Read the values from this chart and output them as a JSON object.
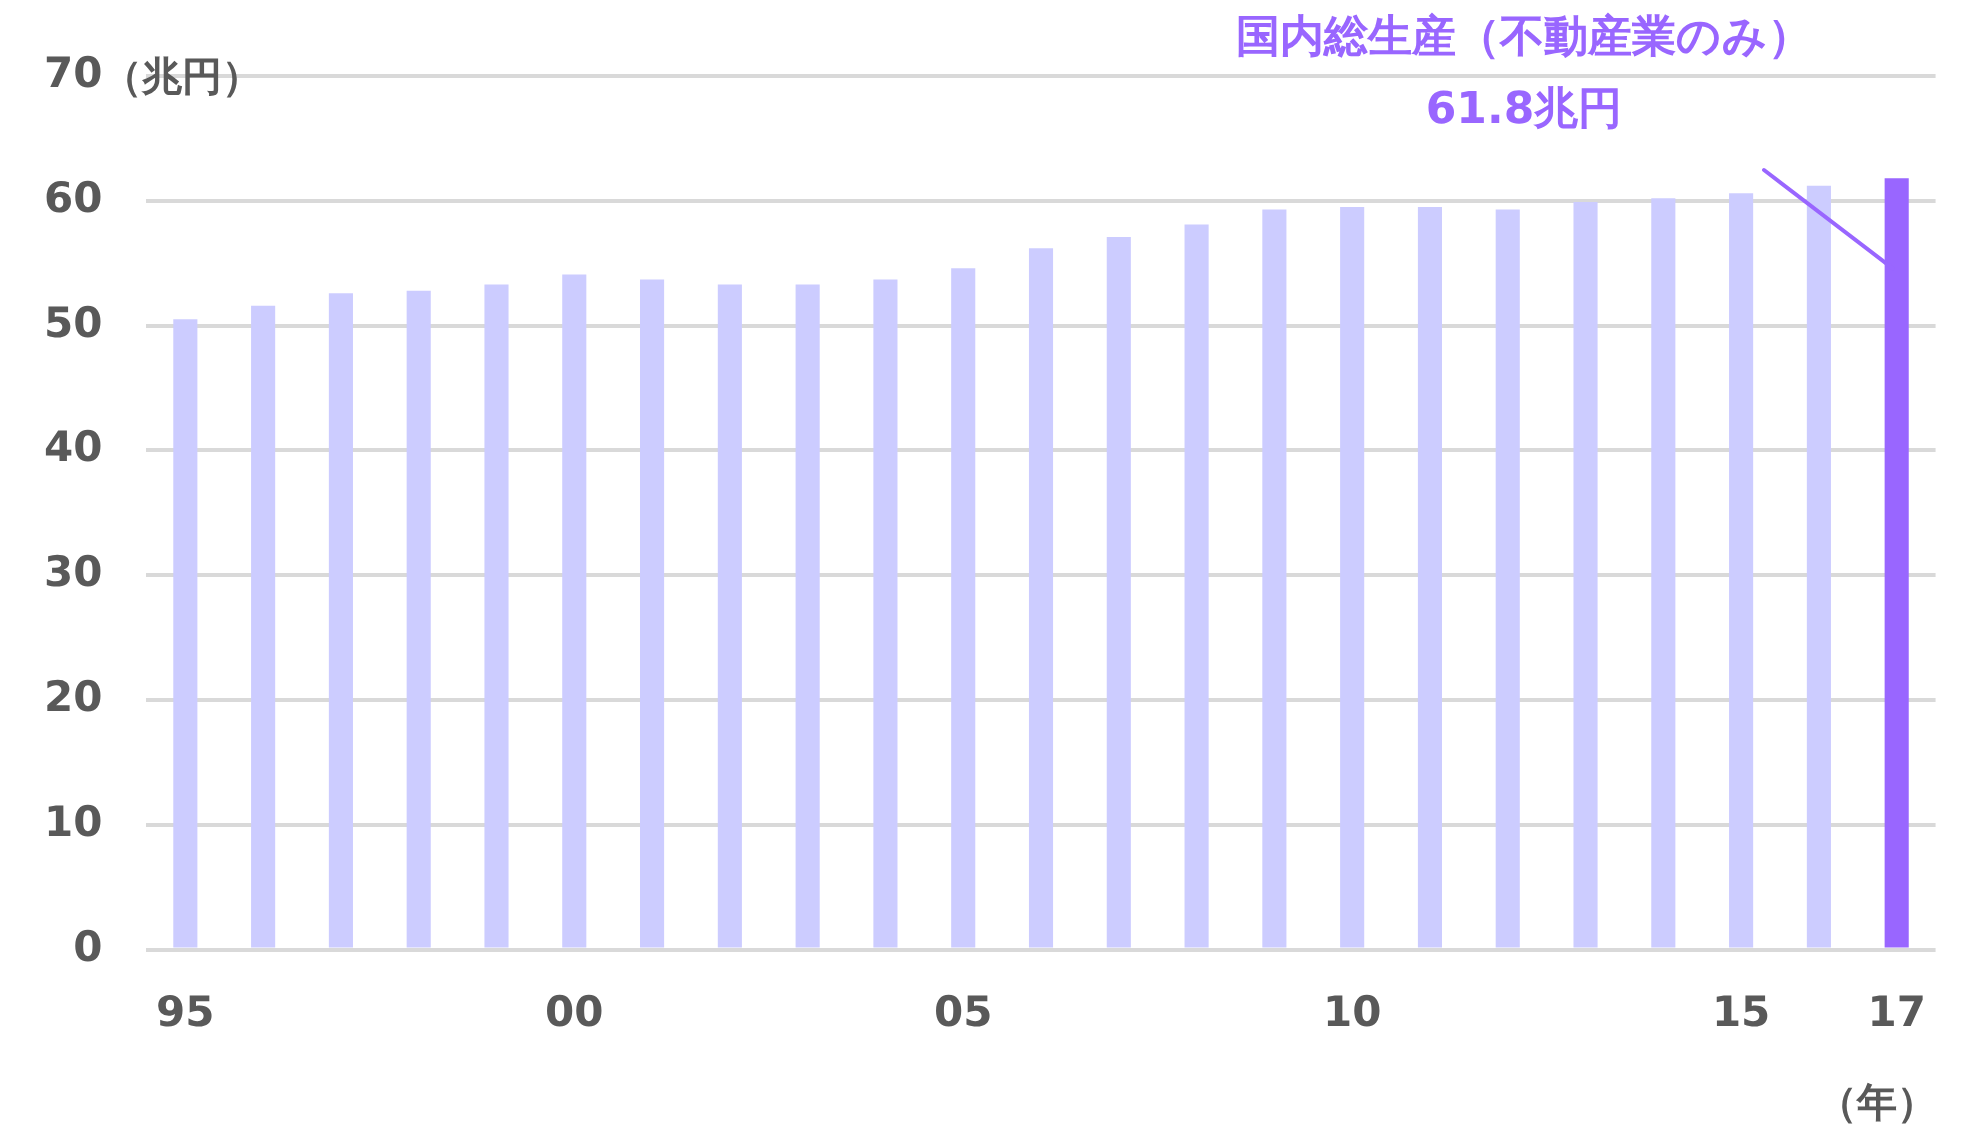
{
  "chart_data": {
    "type": "bar",
    "ylabel": "（兆円）",
    "xlabel": "（年）",
    "categories": [
      "95",
      null,
      null,
      null,
      null,
      "00",
      null,
      null,
      null,
      null,
      "05",
      null,
      null,
      null,
      null,
      "10",
      null,
      null,
      null,
      null,
      "15",
      null,
      "17"
    ],
    "values": [
      50.5,
      51.6,
      52.6,
      52.8,
      53.3,
      54.1,
      53.7,
      53.3,
      53.3,
      53.7,
      54.6,
      56.2,
      57.1,
      58.1,
      59.3,
      59.5,
      59.5,
      59.3,
      59.9,
      60.2,
      60.6,
      61.2,
      61.8
    ],
    "colors": [
      "#ccccff",
      "#ccccff",
      "#ccccff",
      "#ccccff",
      "#ccccff",
      "#ccccff",
      "#ccccff",
      "#ccccff",
      "#ccccff",
      "#ccccff",
      "#ccccff",
      "#ccccff",
      "#ccccff",
      "#ccccff",
      "#ccccff",
      "#ccccff",
      "#ccccff",
      "#ccccff",
      "#ccccff",
      "#ccccff",
      "#ccccff",
      "#ccccff",
      "#9966ff"
    ],
    "ylim": [
      0,
      70
    ],
    "yticks": [
      0,
      10,
      20,
      30,
      40,
      50,
      60,
      70
    ],
    "grid": "y",
    "legend": false,
    "annotations": [
      {
        "text": "国内総生産（不動産業のみ）\n61.8兆円",
        "x": "17",
        "y": 61.8
      }
    ]
  }
}
